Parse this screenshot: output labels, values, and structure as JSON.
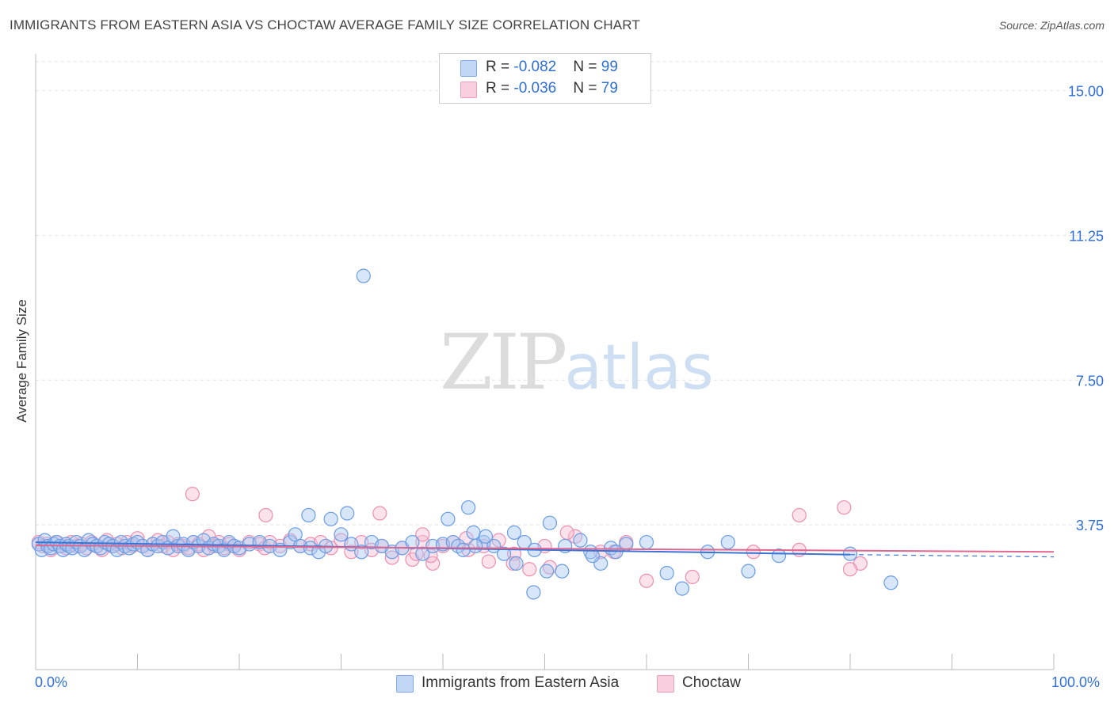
{
  "title": "IMMIGRANTS FROM EASTERN ASIA VS CHOCTAW AVERAGE FAMILY SIZE CORRELATION CHART",
  "source": "Source: ZipAtlas.com",
  "watermark": {
    "zip": "ZIP",
    "atlas": "atlas"
  },
  "legend": {
    "rows": [
      {
        "r_label": "R = ",
        "r_value": "-0.082",
        "n_label": "N = ",
        "n_value": "99"
      },
      {
        "r_label": "R = ",
        "r_value": "-0.036",
        "n_label": "N = ",
        "n_value": "79"
      }
    ]
  },
  "colors": {
    "blue_fill": "#a9c8f2",
    "blue_stroke": "#6a9de3",
    "blue_line": "#3a74d4",
    "pink_fill": "#f7bfd3",
    "pink_stroke": "#ec8fb1",
    "pink_line": "#e0678f",
    "axis_text": "#2f6fd6",
    "grid": "#e2e2e2"
  },
  "chart_data": {
    "type": "scatter",
    "title": "IMMIGRANTS FROM EASTERN ASIA VS CHOCTAW AVERAGE FAMILY SIZE CORRELATION CHART",
    "xlabel": "",
    "ylabel": "Average Family Size",
    "xlim": [
      0,
      100
    ],
    "ylim": [
      0,
      15.75
    ],
    "y_ticks": [
      3.75,
      7.5,
      11.25,
      15.0
    ],
    "y_tick_labels": [
      "3.75",
      "7.50",
      "11.25",
      "15.00"
    ],
    "x_tick_labels": [
      "0.0%",
      "100.0%"
    ],
    "grid": true,
    "series": [
      {
        "name": "Immigrants from Eastern Asia",
        "r": -0.082,
        "n": 99,
        "trend": {
          "x": [
            0,
            80
          ],
          "y": [
            3.3,
            2.98
          ],
          "extend_to": 100,
          "extend_y": 2.92
        },
        "points": [
          [
            0.3,
            3.25
          ],
          [
            0.6,
            3.1
          ],
          [
            0.9,
            3.35
          ],
          [
            1.2,
            3.2
          ],
          [
            1.5,
            3.15
          ],
          [
            1.8,
            3.25
          ],
          [
            2.1,
            3.3
          ],
          [
            2.4,
            3.2
          ],
          [
            2.7,
            3.1
          ],
          [
            3.0,
            3.25
          ],
          [
            3.3,
            3.2
          ],
          [
            3.6,
            3.15
          ],
          [
            4.0,
            3.3
          ],
          [
            4.4,
            3.2
          ],
          [
            4.8,
            3.1
          ],
          [
            5.2,
            3.35
          ],
          [
            5.6,
            3.25
          ],
          [
            6.0,
            3.2
          ],
          [
            6.4,
            3.15
          ],
          [
            6.8,
            3.3
          ],
          [
            7.2,
            3.25
          ],
          [
            7.6,
            3.2
          ],
          [
            8.0,
            3.1
          ],
          [
            8.4,
            3.3
          ],
          [
            8.8,
            3.2
          ],
          [
            9.2,
            3.15
          ],
          [
            9.6,
            3.25
          ],
          [
            10.0,
            3.3
          ],
          [
            10.5,
            3.2
          ],
          [
            11.0,
            3.1
          ],
          [
            11.5,
            3.25
          ],
          [
            12.0,
            3.2
          ],
          [
            12.5,
            3.3
          ],
          [
            13.0,
            3.15
          ],
          [
            13.5,
            3.45
          ],
          [
            14.0,
            3.2
          ],
          [
            14.5,
            3.25
          ],
          [
            15.0,
            3.1
          ],
          [
            15.5,
            3.3
          ],
          [
            16.0,
            3.2
          ],
          [
            16.5,
            3.35
          ],
          [
            17.0,
            3.15
          ],
          [
            17.5,
            3.25
          ],
          [
            18.0,
            3.2
          ],
          [
            18.5,
            3.1
          ],
          [
            19.0,
            3.3
          ],
          [
            19.5,
            3.2
          ],
          [
            20.0,
            3.15
          ],
          [
            21.0,
            3.25
          ],
          [
            22.0,
            3.3
          ],
          [
            23.0,
            3.2
          ],
          [
            24.0,
            3.1
          ],
          [
            25.0,
            3.3
          ],
          [
            25.5,
            3.5
          ],
          [
            26.0,
            3.2
          ],
          [
            27.0,
            3.15
          ],
          [
            27.8,
            3.05
          ],
          [
            28.5,
            3.2
          ],
          [
            29.0,
            3.9
          ],
          [
            30.0,
            3.5
          ],
          [
            31.0,
            3.25
          ],
          [
            32.0,
            3.05
          ],
          [
            33.0,
            3.3
          ],
          [
            34.0,
            3.2
          ],
          [
            35.0,
            3.05
          ],
          [
            36.0,
            3.15
          ],
          [
            37.0,
            3.3
          ],
          [
            38.0,
            3.0
          ],
          [
            39.0,
            3.2
          ],
          [
            40.0,
            3.25
          ],
          [
            40.5,
            3.9
          ],
          [
            41.0,
            3.3
          ],
          [
            41.5,
            3.2
          ],
          [
            42.0,
            3.1
          ],
          [
            42.5,
            4.2
          ],
          [
            43.0,
            3.55
          ],
          [
            44.0,
            3.3
          ],
          [
            45.0,
            3.2
          ],
          [
            46.0,
            3.0
          ],
          [
            47.0,
            3.55
          ],
          [
            48.0,
            3.3
          ],
          [
            49.0,
            3.1
          ],
          [
            50.5,
            3.8
          ],
          [
            52.0,
            3.2
          ],
          [
            53.5,
            3.35
          ],
          [
            54.5,
            3.05
          ],
          [
            55.5,
            2.75
          ],
          [
            56.5,
            3.15
          ],
          [
            57.0,
            3.05
          ],
          [
            58.0,
            3.25
          ],
          [
            60.0,
            3.3
          ],
          [
            62.0,
            2.5
          ],
          [
            63.5,
            2.1
          ],
          [
            66.0,
            3.05
          ],
          [
            68.0,
            3.3
          ],
          [
            70.0,
            2.55
          ],
          [
            73.0,
            2.95
          ],
          [
            80.0,
            3.0
          ],
          [
            84.0,
            2.25
          ]
        ],
        "outliers": [
          [
            32.2,
            10.2
          ],
          [
            30.6,
            4.05
          ],
          [
            26.8,
            4.0
          ],
          [
            54.7,
            2.95
          ],
          [
            51.7,
            2.55
          ],
          [
            50.2,
            2.55
          ],
          [
            48.9,
            2.0
          ],
          [
            47.2,
            2.75
          ],
          [
            44.2,
            3.45
          ],
          [
            43.2,
            3.2
          ]
        ]
      },
      {
        "name": "Choctaw",
        "r": -0.036,
        "n": 79,
        "trend": {
          "x": [
            0,
            100
          ],
          "y": [
            3.22,
            3.05
          ]
        },
        "points": [
          [
            0.3,
            3.3
          ],
          [
            0.7,
            3.2
          ],
          [
            1.1,
            3.25
          ],
          [
            1.5,
            3.1
          ],
          [
            2.0,
            3.3
          ],
          [
            2.5,
            3.2
          ],
          [
            3.0,
            3.15
          ],
          [
            3.5,
            3.3
          ],
          [
            4.0,
            3.2
          ],
          [
            4.5,
            3.25
          ],
          [
            5.0,
            3.15
          ],
          [
            5.5,
            3.3
          ],
          [
            6.0,
            3.2
          ],
          [
            6.5,
            3.1
          ],
          [
            7.0,
            3.35
          ],
          [
            7.5,
            3.2
          ],
          [
            8.0,
            3.25
          ],
          [
            8.5,
            3.15
          ],
          [
            9.0,
            3.3
          ],
          [
            9.5,
            3.2
          ],
          [
            10.0,
            3.4
          ],
          [
            10.5,
            3.2
          ],
          [
            11.0,
            3.1
          ],
          [
            11.5,
            3.25
          ],
          [
            12.0,
            3.35
          ],
          [
            12.5,
            3.2
          ],
          [
            13.0,
            3.3
          ],
          [
            13.5,
            3.1
          ],
          [
            14.0,
            3.25
          ],
          [
            14.5,
            3.2
          ],
          [
            15.0,
            3.15
          ],
          [
            15.5,
            3.3
          ],
          [
            16.0,
            3.25
          ],
          [
            16.5,
            3.1
          ],
          [
            17.0,
            3.45
          ],
          [
            17.5,
            3.2
          ],
          [
            18.0,
            3.3
          ],
          [
            18.5,
            3.15
          ],
          [
            19.0,
            3.25
          ],
          [
            19.5,
            3.2
          ],
          [
            20.0,
            3.1
          ],
          [
            21.0,
            3.3
          ],
          [
            22.0,
            3.25
          ],
          [
            22.5,
            3.15
          ],
          [
            23.0,
            3.3
          ],
          [
            24.0,
            3.2
          ],
          [
            25.0,
            3.35
          ],
          [
            26.0,
            3.2
          ],
          [
            27.0,
            3.25
          ],
          [
            28.0,
            3.3
          ],
          [
            29.0,
            3.15
          ],
          [
            30.0,
            3.35
          ],
          [
            31.0,
            3.05
          ],
          [
            32.0,
            3.3
          ],
          [
            33.0,
            3.1
          ],
          [
            34.0,
            3.2
          ],
          [
            35.0,
            2.9
          ],
          [
            36.0,
            3.15
          ],
          [
            37.0,
            2.85
          ],
          [
            38.0,
            3.3
          ],
          [
            39.0,
            2.75
          ],
          [
            40.0,
            3.2
          ],
          [
            41.0,
            3.3
          ],
          [
            42.5,
            3.1
          ],
          [
            44.0,
            3.2
          ],
          [
            45.5,
            3.35
          ],
          [
            47.0,
            3.0
          ],
          [
            48.5,
            2.6
          ],
          [
            50.0,
            3.2
          ],
          [
            53.0,
            3.45
          ],
          [
            55.5,
            3.05
          ],
          [
            58.0,
            3.3
          ],
          [
            60.0,
            2.3
          ],
          [
            64.5,
            2.4
          ],
          [
            70.5,
            3.05
          ],
          [
            75.0,
            3.1
          ],
          [
            81.0,
            2.75
          ]
        ],
        "outliers": [
          [
            15.4,
            4.55
          ],
          [
            22.6,
            4.0
          ],
          [
            33.8,
            4.05
          ],
          [
            38.0,
            3.5
          ],
          [
            42.3,
            3.4
          ],
          [
            37.4,
            3.0
          ],
          [
            38.8,
            2.95
          ],
          [
            44.5,
            2.8
          ],
          [
            46.9,
            2.75
          ],
          [
            50.5,
            2.65
          ],
          [
            52.2,
            3.55
          ],
          [
            56.8,
            3.05
          ],
          [
            75.0,
            4.0
          ],
          [
            79.4,
            4.2
          ],
          [
            80.0,
            2.6
          ]
        ]
      }
    ],
    "legend_labels": [
      "Immigrants from Eastern Asia",
      "Choctaw"
    ]
  }
}
